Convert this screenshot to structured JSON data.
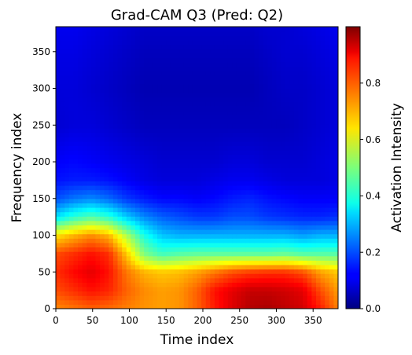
{
  "chart_data": {
    "type": "heatmap",
    "title": "Grad-CAM Q3 (Pred: Q2)",
    "xlabel": "Time index",
    "ylabel": "Frequency index",
    "xlim": [
      0,
      384
    ],
    "ylim": [
      0,
      384
    ],
    "x_ticks": [
      "0",
      "50",
      "100",
      "150",
      "200",
      "250",
      "300",
      "350"
    ],
    "y_ticks": [
      "0",
      "50",
      "100",
      "150",
      "200",
      "250",
      "300",
      "350"
    ],
    "colormap": "jet",
    "colorbar": {
      "label": "Activation Intensity",
      "range": [
        0,
        1
      ],
      "ticks": [
        "0.0",
        "0.2",
        "0.4",
        "0.6",
        "0.8"
      ]
    },
    "grid_x": [
      0,
      24,
      48,
      72,
      96,
      120,
      144,
      168,
      192,
      216,
      240,
      264,
      288,
      312,
      336,
      360,
      384
    ],
    "grid_y": [
      0,
      25,
      50,
      75,
      100,
      125,
      150,
      175,
      200,
      250,
      300,
      350,
      384
    ],
    "values": [
      [
        0.74,
        0.76,
        0.78,
        0.77,
        0.75,
        0.73,
        0.72,
        0.73,
        0.78,
        0.85,
        0.91,
        0.95,
        0.96,
        0.94,
        0.92,
        0.85,
        0.75
      ],
      [
        0.8,
        0.83,
        0.86,
        0.84,
        0.78,
        0.74,
        0.72,
        0.73,
        0.78,
        0.86,
        0.9,
        0.93,
        0.93,
        0.92,
        0.9,
        0.8,
        0.72
      ],
      [
        0.83,
        0.87,
        0.9,
        0.86,
        0.76,
        0.7,
        0.68,
        0.69,
        0.72,
        0.76,
        0.8,
        0.82,
        0.83,
        0.83,
        0.8,
        0.72,
        0.68
      ],
      [
        0.8,
        0.83,
        0.86,
        0.83,
        0.68,
        0.5,
        0.44,
        0.46,
        0.47,
        0.47,
        0.47,
        0.47,
        0.47,
        0.48,
        0.46,
        0.46,
        0.46
      ],
      [
        0.65,
        0.7,
        0.74,
        0.7,
        0.55,
        0.4,
        0.32,
        0.3,
        0.3,
        0.3,
        0.3,
        0.3,
        0.3,
        0.3,
        0.28,
        0.3,
        0.3
      ],
      [
        0.35,
        0.42,
        0.46,
        0.42,
        0.33,
        0.26,
        0.22,
        0.2,
        0.18,
        0.18,
        0.2,
        0.2,
        0.18,
        0.17,
        0.16,
        0.16,
        0.17
      ],
      [
        0.2,
        0.24,
        0.26,
        0.23,
        0.18,
        0.15,
        0.13,
        0.13,
        0.12,
        0.13,
        0.15,
        0.16,
        0.14,
        0.13,
        0.12,
        0.12,
        0.12
      ],
      [
        0.14,
        0.15,
        0.15,
        0.14,
        0.12,
        0.1,
        0.09,
        0.09,
        0.09,
        0.1,
        0.11,
        0.11,
        0.1,
        0.09,
        0.09,
        0.09,
        0.1
      ],
      [
        0.12,
        0.13,
        0.12,
        0.11,
        0.1,
        0.09,
        0.08,
        0.08,
        0.08,
        0.08,
        0.09,
        0.09,
        0.08,
        0.08,
        0.08,
        0.09,
        0.1
      ],
      [
        0.08,
        0.09,
        0.09,
        0.08,
        0.07,
        0.06,
        0.06,
        0.06,
        0.06,
        0.06,
        0.06,
        0.06,
        0.06,
        0.06,
        0.07,
        0.08,
        0.09
      ],
      [
        0.09,
        0.09,
        0.08,
        0.07,
        0.06,
        0.05,
        0.05,
        0.05,
        0.05,
        0.05,
        0.05,
        0.05,
        0.06,
        0.07,
        0.07,
        0.08,
        0.09
      ],
      [
        0.1,
        0.1,
        0.09,
        0.08,
        0.07,
        0.06,
        0.06,
        0.06,
        0.06,
        0.06,
        0.06,
        0.06,
        0.07,
        0.08,
        0.08,
        0.09,
        0.1
      ],
      [
        0.11,
        0.11,
        0.1,
        0.09,
        0.08,
        0.07,
        0.07,
        0.07,
        0.07,
        0.07,
        0.07,
        0.07,
        0.08,
        0.08,
        0.09,
        0.1,
        0.11
      ]
    ]
  }
}
